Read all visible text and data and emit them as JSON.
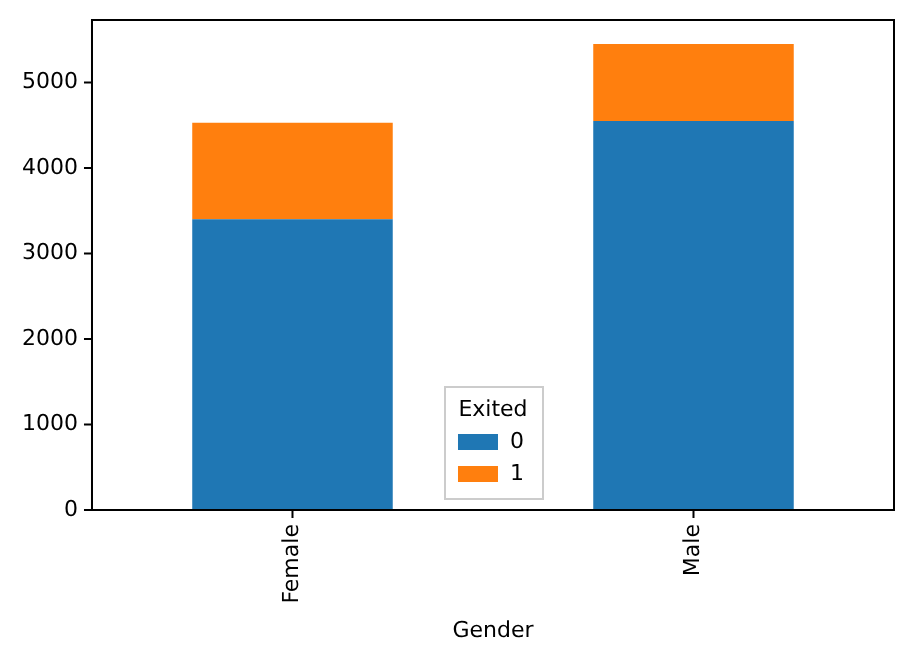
{
  "chart_data": {
    "type": "bar",
    "stacked": true,
    "xlabel": "Gender",
    "legend_title": "Exited",
    "legend": "bottom",
    "categories": [
      "Female",
      "Male"
    ],
    "series": [
      {
        "name": "0",
        "color": "#1f77b4",
        "values": [
          3400,
          4550
        ]
      },
      {
        "name": "1",
        "color": "#ff7f0e",
        "values": [
          1130,
          900
        ]
      }
    ],
    "ylim": [
      0,
      5730
    ],
    "yticks": [
      0,
      1000,
      2000,
      3000,
      4000,
      5000
    ],
    "grid": false
  }
}
